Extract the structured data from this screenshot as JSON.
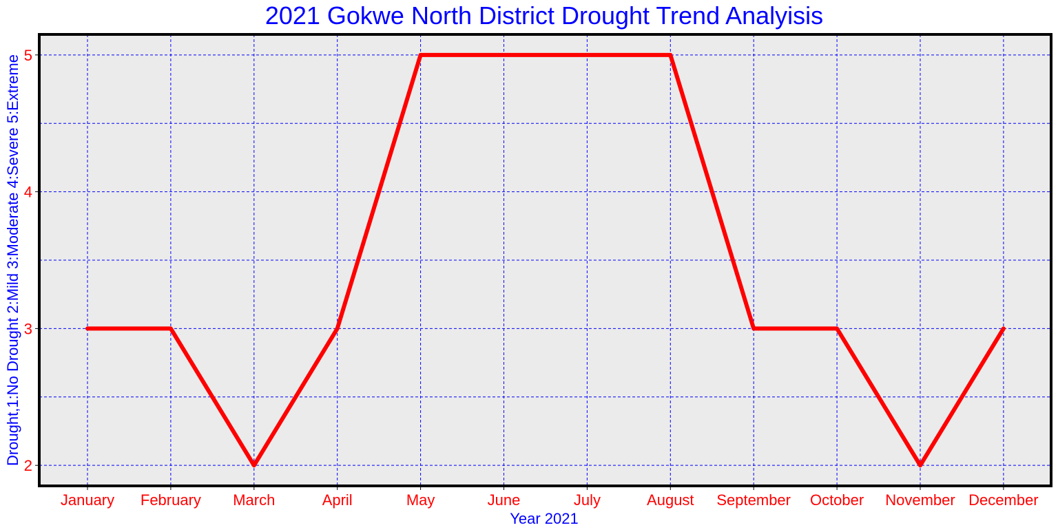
{
  "chart_data": {
    "type": "line",
    "title": "2021 Gokwe North District Drought Trend Analyisis",
    "xlabel": "Year 2021",
    "ylabel": "Drought,1:No Drought 2:Mild 3:Moderate 4:Severe 5:Extreme",
    "categories": [
      "January",
      "February",
      "March",
      "April",
      "May",
      "June",
      "July",
      "August",
      "September",
      "October",
      "November",
      "December"
    ],
    "series": [
      {
        "values": [
          3,
          3,
          2,
          3,
          5,
          5,
          5,
          5,
          3,
          3,
          2,
          3
        ]
      }
    ],
    "ylim": [
      1.85,
      5.15
    ],
    "yticks": [
      "2",
      "3",
      "4",
      "5"
    ],
    "grid": true,
    "colors": {
      "title": "#0000ff",
      "axis_label": "#0000ff",
      "tick_label": "#ff0000",
      "line": "#ff0000",
      "grid": "#0000ff",
      "plot_background": "#ebebeb",
      "frame": "#000000"
    }
  }
}
